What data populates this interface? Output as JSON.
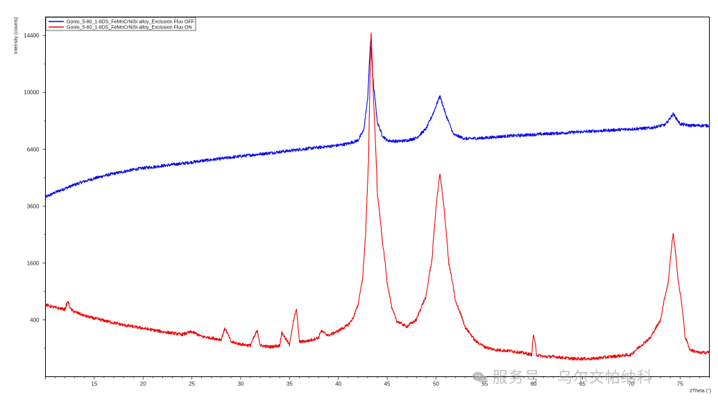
{
  "chart_data": {
    "type": "line",
    "xlabel": "2Theta (°)",
    "ylabel": "Intensity (counts)",
    "xlim": [
      10,
      78
    ],
    "y_scale": "sqrt",
    "ylim": [
      0,
      16000
    ],
    "x_ticks": [
      15,
      20,
      25,
      30,
      35,
      40,
      45,
      50,
      55,
      60,
      65,
      70,
      75
    ],
    "x_tick_labels": [
      "15",
      "20",
      "25",
      "30",
      "35",
      "40",
      "45",
      "50",
      "55",
      "60",
      "65",
      "70",
      "75"
    ],
    "y_ticks": [
      400,
      1600,
      3600,
      6400,
      10000,
      14400
    ],
    "y_tick_labels": [
      "400",
      "1600",
      "3600",
      "6400",
      "10000",
      "14400"
    ],
    "legend_position": "top-left",
    "grid": false,
    "series": [
      {
        "name": "Gonio_5-80_1-8DS_FeMnCrNiSi alloy_Exclusion Fluo OFF",
        "color": "#0000ee",
        "x": [
          10,
          11,
          12,
          13,
          14,
          15,
          16,
          17,
          18,
          19,
          20,
          22,
          24,
          26,
          28,
          30,
          32,
          34,
          36,
          38,
          40,
          41,
          42,
          42.6,
          43.0,
          43.3,
          43.6,
          44.0,
          44.5,
          45,
          46,
          47,
          48,
          49,
          49.8,
          50.4,
          51.0,
          51.8,
          53,
          55,
          57,
          60,
          63,
          66,
          69,
          72,
          73.5,
          74.3,
          75.0,
          76,
          78
        ],
        "y": [
          3980,
          4200,
          4380,
          4560,
          4720,
          4860,
          4990,
          5100,
          5200,
          5300,
          5380,
          5500,
          5620,
          5760,
          5880,
          6010,
          6130,
          6250,
          6380,
          6500,
          6620,
          6720,
          6900,
          7500,
          9500,
          13900,
          10500,
          8000,
          7200,
          6900,
          6850,
          6900,
          7050,
          7600,
          8700,
          9750,
          8500,
          7250,
          7000,
          7050,
          7150,
          7250,
          7350,
          7450,
          7550,
          7650,
          7850,
          8550,
          7900,
          7800,
          7800
        ]
      },
      {
        "name": "Gonio_5-80_1-8DS_FeMnCrNiSi alloy_Exclusion Fluo ON",
        "color": "#ee0000",
        "x": [
          10,
          11,
          12,
          12.3,
          12.6,
          13,
          14,
          15,
          16,
          18,
          20,
          22,
          24,
          25,
          26,
          28,
          28.4,
          29,
          30,
          31,
          31.7,
          32,
          33,
          34,
          34.2,
          35,
          35.7,
          36,
          37,
          38,
          38.2,
          39,
          40,
          41,
          41.5,
          42,
          42.5,
          42.8,
          43.1,
          43.35,
          43.6,
          44.0,
          44.5,
          45,
          45.5,
          46,
          47,
          48,
          49,
          49.6,
          50.1,
          50.4,
          50.8,
          51.3,
          52,
          53,
          54,
          55,
          56,
          58,
          59.8,
          60.0,
          60.3,
          61,
          62,
          64,
          66,
          68,
          70,
          71,
          72,
          73,
          73.8,
          74.3,
          74.8,
          75.5,
          76,
          77,
          78
        ],
        "y": [
          640,
          590,
          560,
          700,
          560,
          520,
          460,
          420,
          390,
          330,
          290,
          250,
          220,
          250,
          200,
          170,
          290,
          150,
          130,
          120,
          260,
          120,
          110,
          120,
          240,
          120,
          560,
          150,
          160,
          190,
          260,
          210,
          260,
          330,
          420,
          620,
          1200,
          2500,
          5800,
          14900,
          9500,
          4100,
          2300,
          1100,
          560,
          380,
          310,
          400,
          800,
          1700,
          3900,
          5100,
          3600,
          1600,
          700,
          300,
          160,
          110,
          90,
          80,
          60,
          220,
          60,
          50,
          50,
          40,
          40,
          50,
          60,
          120,
          190,
          390,
          1100,
          2550,
          1150,
          200,
          90,
          70,
          75
        ]
      }
    ]
  },
  "watermark": {
    "text": "服务号 · 乌尔文帕纳科",
    "icon": "chat-bubbles-icon"
  }
}
